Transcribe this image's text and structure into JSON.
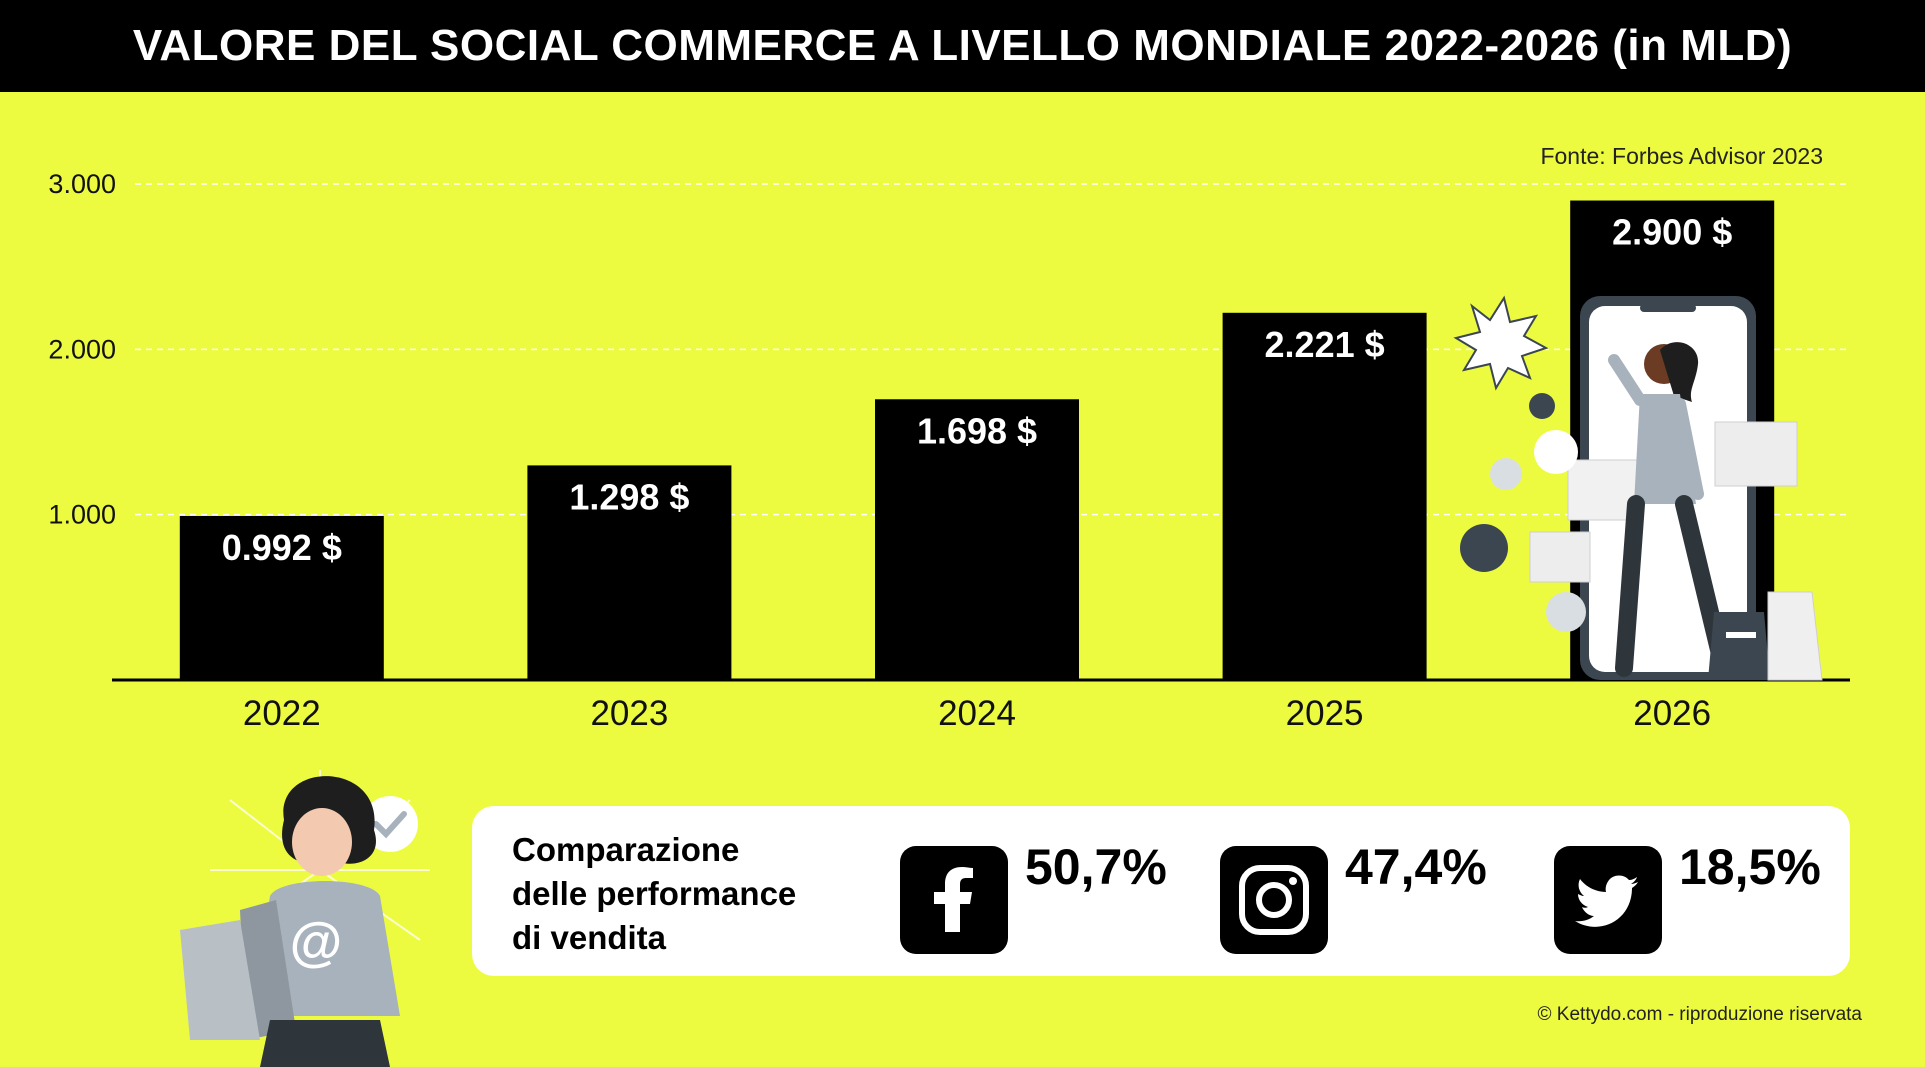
{
  "header": {
    "title": "VALORE DEL SOCIAL COMMERCE A LIVELLO MONDIALE 2022-2026 (in MLD)"
  },
  "source": "Fonte: Forbes Advisor 2023",
  "colors": {
    "background": "#EDFB40",
    "bar": "#000000",
    "text": "#000000",
    "bar_label": "#FFFFFF"
  },
  "chart_data": {
    "type": "bar",
    "title": "VALORE DEL SOCIAL COMMERCE A LIVELLO MONDIALE 2022-2026 (in MLD)",
    "categories": [
      "2022",
      "2023",
      "2024",
      "2025",
      "2026"
    ],
    "values": [
      992,
      1298,
      1698,
      2221,
      2900
    ],
    "data_labels": [
      "0.992 $",
      "1.298 $",
      "1.698 $",
      "2.221 $",
      "2.900 $"
    ],
    "y_ticks": [
      1000,
      2000,
      3000
    ],
    "y_tick_labels": [
      "1.000",
      "2.000",
      "3.000"
    ],
    "ylim": [
      0,
      3000
    ],
    "grid": true,
    "xlabel": "",
    "ylabel": ""
  },
  "performance": {
    "title_lines": [
      "Comparazione",
      "delle performance",
      "di vendita"
    ],
    "items": [
      {
        "platform": "Facebook",
        "icon": "facebook-icon",
        "value": "50,7%"
      },
      {
        "platform": "Instagram",
        "icon": "instagram-icon",
        "value": "47,4%"
      },
      {
        "platform": "Twitter",
        "icon": "twitter-icon",
        "value": "18,5%"
      }
    ]
  },
  "footer": {
    "credit": "© Kettydo.com - riproduzione riservata"
  }
}
